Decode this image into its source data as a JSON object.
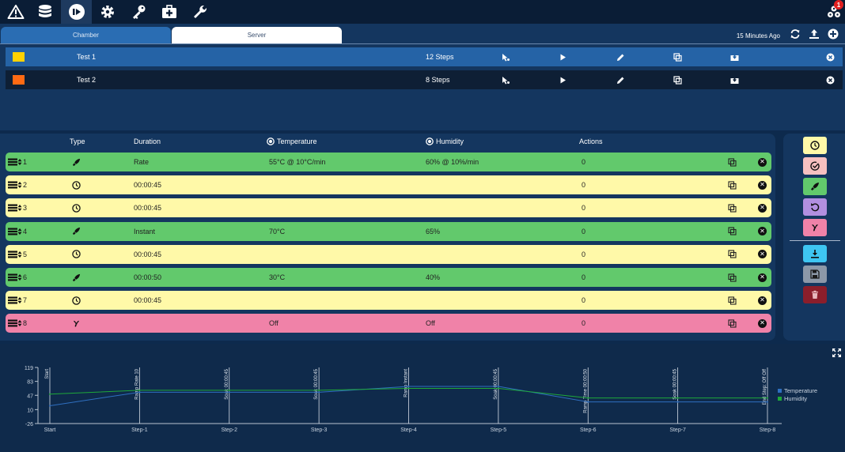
{
  "toolbar": {
    "items": [
      "warning-icon",
      "database-icon",
      "run-icon",
      "settings-icon",
      "key-icon",
      "medkit-icon",
      "wrench-icon"
    ],
    "active": "run-icon",
    "notification_count": "1"
  },
  "tabs": [
    {
      "label": "Chamber"
    },
    {
      "label": "Server"
    }
  ],
  "tabs_bar": {
    "last_update": "15 Minutes Ago"
  },
  "tests": [
    {
      "color": "#ffd200",
      "name": "Test 1",
      "steps": "12 Steps"
    },
    {
      "color": "#ff6a13",
      "name": "Test 2",
      "steps": "8 Steps"
    }
  ],
  "columns": {
    "type": "Type",
    "duration": "Duration",
    "temperature": "Temperature",
    "humidity": "Humidity",
    "actions": "Actions"
  },
  "steps": [
    {
      "num": "1",
      "kind": "rocket-icon",
      "color": "green",
      "duration": "Rate",
      "temperature": "55°C @ 10°C/min",
      "humidity": "60% @ 10%/min",
      "actions": "0"
    },
    {
      "num": "2",
      "kind": "clock-icon",
      "color": "yellow",
      "duration": "00:00:45",
      "temperature": "",
      "humidity": "",
      "actions": "0"
    },
    {
      "num": "3",
      "kind": "clock-icon",
      "color": "yellow",
      "duration": "00:00:45",
      "temperature": "",
      "humidity": "",
      "actions": "0"
    },
    {
      "num": "4",
      "kind": "rocket-icon",
      "color": "green",
      "duration": "Instant",
      "temperature": "70°C",
      "humidity": "65%",
      "actions": "0"
    },
    {
      "num": "5",
      "kind": "clock-icon",
      "color": "yellow",
      "duration": "00:00:45",
      "temperature": "",
      "humidity": "",
      "actions": "0"
    },
    {
      "num": "6",
      "kind": "rocket-icon",
      "color": "green",
      "duration": "00:00:50",
      "temperature": "30°C",
      "humidity": "40%",
      "actions": "0"
    },
    {
      "num": "7",
      "kind": "clock-icon",
      "color": "yellow",
      "duration": "00:00:45",
      "temperature": "",
      "humidity": "",
      "actions": "0"
    },
    {
      "num": "8",
      "kind": "fan-icon",
      "color": "pink",
      "duration": "",
      "temperature": "Off",
      "humidity": "Off",
      "actions": "0"
    }
  ],
  "side_tools": [
    {
      "name": "add-soak-button",
      "icon": "clock-icon",
      "color": "#fff9a8"
    },
    {
      "name": "add-guaranteed-soak-button",
      "icon": "check-circle-icon",
      "color": "#f6c0c0"
    },
    {
      "name": "add-ramp-button",
      "icon": "rocket-icon",
      "color": "#62c96c"
    },
    {
      "name": "add-loop-button",
      "icon": "undo-icon",
      "color": "#b28fe0"
    },
    {
      "name": "add-end-button",
      "icon": "fan-icon",
      "color": "#f082a8"
    },
    {
      "name": "download-button",
      "icon": "download-icon",
      "color": "#3ec6f2"
    },
    {
      "name": "save-button",
      "icon": "save-icon",
      "color": "#8c98a8"
    },
    {
      "name": "delete-button",
      "icon": "trash-icon",
      "color": "#8b1e2b"
    }
  ],
  "colors": {
    "temperature": "#2f6fc0",
    "humidity": "#1fa83a"
  },
  "chart_data": {
    "type": "line",
    "x": [
      "Start",
      "Step-1",
      "Step-2",
      "Step-3",
      "Step-4",
      "Step-5",
      "Step-6",
      "Step-7",
      "Step-8"
    ],
    "ylim": [
      -26,
      119
    ],
    "yticks": [
      119,
      83,
      47,
      10,
      -26
    ],
    "series": [
      {
        "name": "Temperature",
        "values": [
          20,
          55,
          55,
          55,
          70,
          70,
          30,
          30,
          30
        ]
      },
      {
        "name": "Humidity",
        "values": [
          50,
          60,
          60,
          60,
          65,
          65,
          40,
          40,
          40
        ]
      }
    ],
    "annotations": [
      "Start",
      "Ramp Rate 10",
      "Soak 00:00:45",
      "Soak 00:00:45",
      "Ramp Instant",
      "Soak 00:00:45",
      "Ramp Time 00:00:50",
      "Soak 00:00:45",
      "End Step: Off Off"
    ],
    "legend": "right"
  }
}
